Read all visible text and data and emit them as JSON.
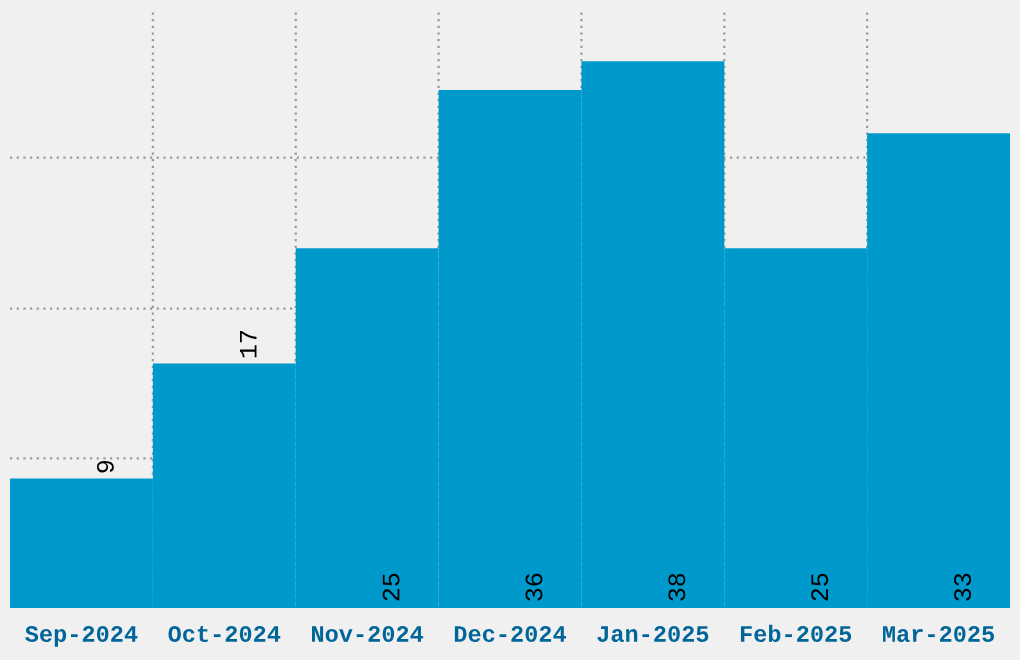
{
  "chart_data": {
    "type": "bar",
    "categories": [
      "Sep-2024",
      "Oct-2024",
      "Nov-2024",
      "Dec-2024",
      "Jan-2025",
      "Feb-2025",
      "Mar-2025"
    ],
    "values": [
      9,
      17,
      25,
      36,
      38,
      25,
      33
    ],
    "color": "#0099cc",
    "data_labels": true,
    "ylim": [
      0,
      41.7
    ],
    "yticks": [
      {
        "value": 10.4,
        "label": null
      },
      {
        "value": 20.8,
        "label": null
      },
      {
        "value": 31.3,
        "label": null
      }
    ],
    "tick_labels": "x",
    "grid": true
  }
}
